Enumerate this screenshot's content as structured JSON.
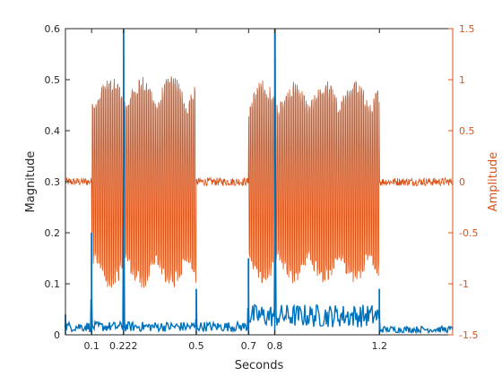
{
  "chart_data": {
    "type": "line",
    "xlabel": "Seconds",
    "ylabel_left": "Magnitude",
    "ylabel_right": "Amplitude",
    "xlim": [
      0,
      1.48
    ],
    "ylim_left": [
      0,
      0.6
    ],
    "ylim_right": [
      -1.5,
      1.5
    ],
    "grid": false,
    "colors": {
      "left": "#0072BD",
      "right": "#D95319",
      "axis": "#262626"
    },
    "x_ticks": [
      0.1,
      0.222,
      0.5,
      0.7,
      0.8,
      1.2
    ],
    "x_tick_labels": [
      "0.1",
      "0.222",
      "0.5",
      "0.7",
      "0.8",
      "1.2"
    ],
    "y_left_ticks": [
      0,
      0.1,
      0.2,
      0.3,
      0.4,
      0.5,
      0.6
    ],
    "y_left_tick_labels": [
      "0",
      "0.1",
      "0.2",
      "0.3",
      "0.4",
      "0.5",
      "0.6"
    ],
    "y_right_ticks": [
      -1.5,
      -1,
      -0.5,
      0,
      0.5,
      1,
      1.5
    ],
    "y_right_tick_labels": [
      "-1.5",
      "-1",
      "-0.5",
      "0",
      "0.5",
      "1",
      "1.5"
    ],
    "series": [
      {
        "axis": "right",
        "style": "signal",
        "segments": [
          {
            "x_start": 0.0,
            "x_end": 0.1,
            "amplitude": 0.04
          },
          {
            "x_start": 0.1,
            "x_end": 0.5,
            "amplitude": 1.05
          },
          {
            "x_start": 0.5,
            "x_end": 0.7,
            "amplitude": 0.04
          },
          {
            "x_start": 0.7,
            "x_end": 1.2,
            "amplitude": 1.0
          },
          {
            "x_start": 1.2,
            "x_end": 1.48,
            "amplitude": 0.04
          }
        ]
      },
      {
        "axis": "left",
        "style": "magnitude",
        "baseline": [
          {
            "x_start": 0.0,
            "x_end": 0.7,
            "value": 0.015
          },
          {
            "x_start": 0.7,
            "x_end": 1.2,
            "value": 0.035
          },
          {
            "x_start": 1.2,
            "x_end": 1.48,
            "value": 0.01
          }
        ],
        "peaks": [
          {
            "x": 0.0,
            "value": 0.04
          },
          {
            "x": 0.1,
            "value": 0.2
          },
          {
            "x": 0.222,
            "value": 0.6
          },
          {
            "x": 0.5,
            "value": 0.09
          },
          {
            "x": 0.7,
            "value": 0.15
          },
          {
            "x": 0.8,
            "value": 0.6
          },
          {
            "x": 1.2,
            "value": 0.09
          }
        ]
      }
    ]
  }
}
